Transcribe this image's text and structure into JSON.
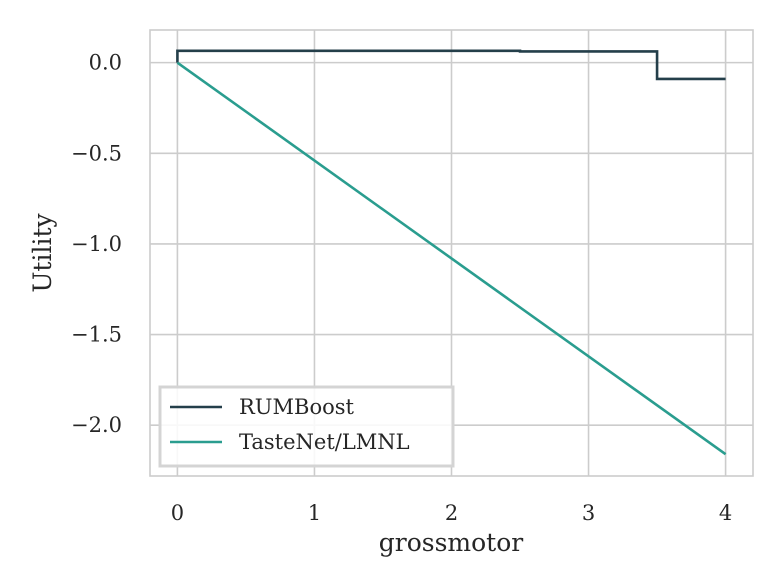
{
  "chart_data": {
    "type": "line",
    "title": "",
    "xlabel": "grossmotor",
    "ylabel": "Utility",
    "xlim": [
      -0.2,
      4.2
    ],
    "ylim": [
      -2.28,
      0.18
    ],
    "xticks": [
      0,
      1,
      2,
      3,
      4
    ],
    "xtick_labels": [
      "0",
      "1",
      "2",
      "3",
      "4"
    ],
    "yticks": [
      0.0,
      -0.5,
      -1.0,
      -1.5,
      -2.0
    ],
    "ytick_labels": [
      "0.0",
      "−0.5",
      "−1.0",
      "−1.5",
      "−2.0"
    ],
    "grid": true,
    "legend_position": "lower-left",
    "series": [
      {
        "name": "RUMBoost",
        "color": "#243f4a",
        "x": [
          0,
          0,
          2.5,
          2.5,
          3.5,
          3.5,
          4
        ],
        "y": [
          0,
          0.065,
          0.065,
          0.062,
          0.062,
          -0.09,
          -0.09
        ]
      },
      {
        "name": "TasteNet/LMNL",
        "color": "#2a9d8f",
        "x": [
          0,
          4
        ],
        "y": [
          0,
          -2.16
        ]
      }
    ]
  }
}
